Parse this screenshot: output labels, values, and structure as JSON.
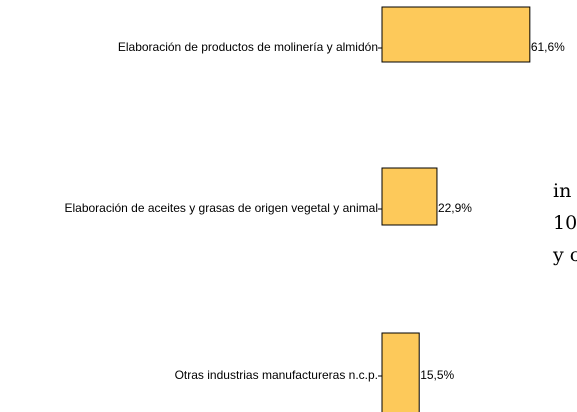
{
  "chart_data": {
    "type": "barh",
    "categories": [
      "Elaboración de productos de molinería y almidón",
      "Elaboración de aceites y grasas de origen vegetal y animal",
      "Otras industrias manufactureras n.c.p."
    ],
    "values": [
      61.6,
      22.9,
      15.5
    ],
    "value_labels": [
      "61,6%",
      "22,9%",
      "15,5%"
    ],
    "color": "#fdc95a",
    "annotations": [
      "in",
      "10",
      "y c"
    ]
  }
}
